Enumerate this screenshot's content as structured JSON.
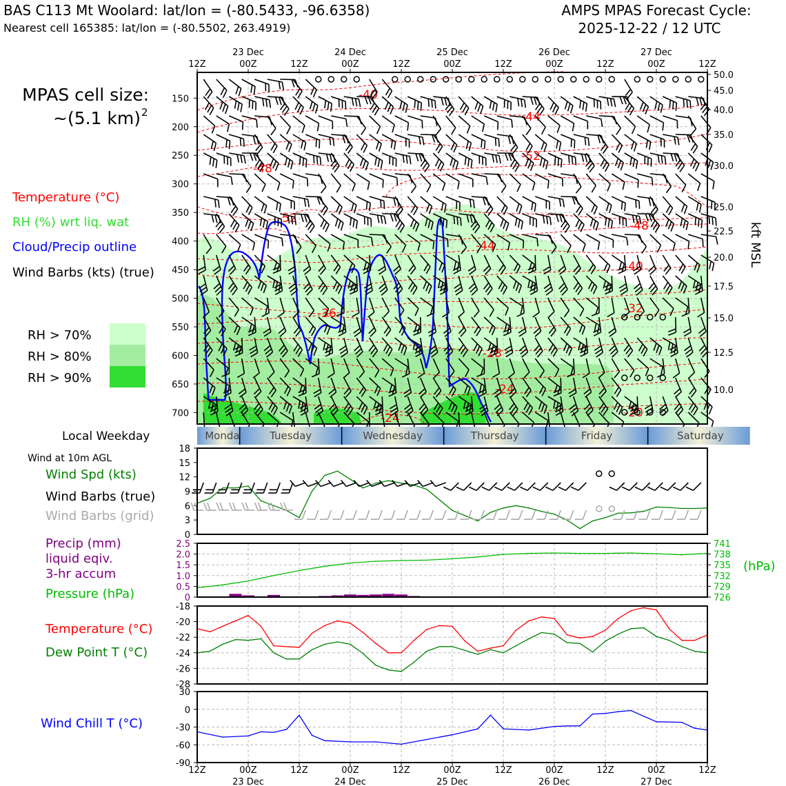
{
  "header": {
    "station_title": "BAS C113 Mt Woolard: lat/lon = (-80.5433, -96.6358)",
    "nearest_cell": "Nearest cell 165385: lat/lon = (-80.5502, 263.4919)",
    "forecast_title": "AMPS MPAS Forecast Cycle:",
    "forecast_cycle": "2025-12-22 / 12 UTC"
  },
  "time_axis": {
    "ticks": [
      "12Z",
      "00Z",
      "12Z",
      "00Z",
      "12Z",
      "00Z",
      "12Z",
      "00Z",
      "12Z",
      "00Z",
      "12Z"
    ],
    "dates": [
      "23 Dec",
      "24 Dec",
      "25 Dec",
      "26 Dec",
      "27 Dec"
    ],
    "xlim": [
      0,
      120
    ]
  },
  "legend": {
    "cell_size_label": "MPAS cell size:",
    "cell_size_value": "~(5.1 km)",
    "cell_size_exp": "2",
    "temperature": "Temperature (°C)",
    "rh": "RH (%) wrt liq. wat",
    "cloud": "Cloud/Precip outline",
    "wind_barbs": "Wind Barbs (kts) (true)",
    "rh70": "RH > 70%",
    "rh80": "RH > 80%",
    "rh90": "RH > 90%",
    "local_weekday": "Local Weekday",
    "wind_10m": "Wind at 10m AGL",
    "wind_spd": "Wind Spd (kts)",
    "wind_barbs_true": "Wind Barbs (true)",
    "wind_barbs_grid": "Wind Barbs (grid)",
    "precip_1": "Precip (mm)",
    "precip_2": "liquid eqiv.",
    "precip_3": "3-hr accum",
    "pressure": "Pressure (hPa)",
    "temp2": "Temperature (°C)",
    "dewpoint": "Dew Point T (°C)",
    "windchill": "Wind Chill T (°C)",
    "hpa_label": "(hPa)",
    "kft_label": "kft MSL"
  },
  "colors": {
    "temp": "#ff0000",
    "rh": "#33dd33",
    "cloud": "#0000ff",
    "dew": "#008000",
    "precip": "#800080",
    "pressure": "#00bb00",
    "rh70": "#ccffcc",
    "rh80": "#a2ed9f",
    "rh90": "#33dd33"
  },
  "weekdays": [
    "Monday",
    "Tuesday",
    "Wednesday",
    "Thursday",
    "Friday",
    "Saturday"
  ],
  "chart_data": [
    {
      "type": "contour",
      "name": "upper-air cross section",
      "ylabel_left": "Pressure (hPa)",
      "ylabel_right": "kft MSL",
      "y_left_ticks": [
        "150",
        "200",
        "250",
        "300",
        "350",
        "400",
        "450",
        "500",
        "550",
        "600",
        "650",
        "700"
      ],
      "y_right_ticks": [
        "50.0",
        "45.0",
        "40.0",
        "35.0",
        "30.0",
        "25.0",
        "22.5",
        "20.0",
        "17.5",
        "15.0",
        "12.5",
        "10.0"
      ],
      "ylim_hpa": [
        105,
        720
      ],
      "temperature_contour_labels": [
        "-40",
        "-44",
        "-52",
        "-48",
        "-52",
        "-48",
        "-44",
        "-40",
        "-36",
        "-32",
        "-28",
        "-24",
        "-24",
        "-20"
      ]
    },
    {
      "type": "line",
      "name": "10 m wind speed",
      "ylabel": "Wind Spd (kts)",
      "y_ticks": [
        "0",
        "3",
        "6",
        "9",
        "12",
        "15",
        "18"
      ],
      "ylim": [
        0,
        18
      ],
      "x": [
        0,
        3,
        6,
        9,
        12,
        15,
        18,
        21,
        24,
        27,
        30,
        33,
        36,
        39,
        42,
        45,
        48,
        51,
        54,
        57,
        60,
        63,
        66,
        69,
        72,
        75,
        78,
        81,
        84,
        87,
        90,
        93,
        96,
        99,
        102,
        105,
        108,
        111,
        114,
        117,
        120
      ],
      "values": [
        6.5,
        7.5,
        9.7,
        9.7,
        10.1,
        7.0,
        6.0,
        5.0,
        3.5,
        9.0,
        12.3,
        13.2,
        11.5,
        9.7,
        10.7,
        11.2,
        10.7,
        10.3,
        9.4,
        7.2,
        5.0,
        3.9,
        2.8,
        4.6,
        5.5,
        6.0,
        5.5,
        4.8,
        4.2,
        3.0,
        1.2,
        2.8,
        3.5,
        4.4,
        4.5,
        4.8,
        5.7,
        5.6,
        5.4,
        5.4,
        5.5
      ]
    },
    {
      "type": "bar+line",
      "name": "precipitation and pressure",
      "precip_ylabel": "Precip (mm)",
      "precip_ticks": [
        "0",
        "0.5",
        "1.0",
        "1.5",
        "2.0",
        "2.5"
      ],
      "precip_ylim": [
        0,
        2.5
      ],
      "precip_x": [
        9,
        12,
        18,
        30,
        33,
        36,
        39,
        42,
        45,
        48,
        51
      ],
      "precip_values": [
        0.15,
        0.08,
        0.1,
        0.05,
        0.08,
        0.12,
        0.1,
        0.12,
        0.15,
        0.12,
        0.05
      ],
      "pressure_ticks": [
        "741",
        "738",
        "735",
        "732",
        "729",
        "726"
      ],
      "pressure_ylim": [
        726,
        741
      ],
      "pressure_x": [
        0,
        6,
        12,
        18,
        24,
        30,
        36,
        42,
        48,
        54,
        60,
        66,
        72,
        78,
        84,
        90,
        96,
        102,
        108,
        114,
        120
      ],
      "pressure_values": [
        728.6,
        729.4,
        730.5,
        732.0,
        733.4,
        734.6,
        735.5,
        736.0,
        736.2,
        736.3,
        736.7,
        737.2,
        737.9,
        738.2,
        738.3,
        738.2,
        738.2,
        738.3,
        738.1,
        737.8,
        738.2
      ]
    },
    {
      "type": "line",
      "name": "temperature and dew point",
      "y_ticks": [
        "-18",
        "-20",
        "-22",
        "-24",
        "-26",
        "-28"
      ],
      "ylim": [
        -28,
        -18
      ],
      "x": [
        0,
        3,
        6,
        9,
        12,
        15,
        18,
        21,
        24,
        27,
        30,
        33,
        36,
        39,
        42,
        45,
        48,
        51,
        54,
        57,
        60,
        63,
        66,
        69,
        72,
        75,
        78,
        81,
        84,
        87,
        90,
        93,
        96,
        99,
        102,
        105,
        108,
        111,
        114,
        117,
        120
      ],
      "temperature": [
        -20.9,
        -21.3,
        -20.6,
        -19.9,
        -19.2,
        -20.6,
        -23.1,
        -23.2,
        -23.3,
        -21.5,
        -20.5,
        -19.9,
        -20.2,
        -21.4,
        -22.8,
        -24.0,
        -24.0,
        -22.4,
        -21.0,
        -20.5,
        -20.6,
        -22.5,
        -23.8,
        -23.4,
        -23.1,
        -21.1,
        -19.9,
        -19.4,
        -19.6,
        -21.7,
        -22.1,
        -21.9,
        -21.1,
        -19.6,
        -18.6,
        -18.2,
        -18.5,
        -20.9,
        -22.4,
        -22.4,
        -21.7
      ],
      "dewpoint": [
        -24.0,
        -23.8,
        -22.9,
        -22.3,
        -22.4,
        -22.2,
        -24.0,
        -24.8,
        -24.8,
        -23.6,
        -22.9,
        -22.6,
        -22.9,
        -24.1,
        -25.6,
        -26.2,
        -26.4,
        -25.2,
        -23.8,
        -23.2,
        -23.2,
        -23.7,
        -24.2,
        -23.6,
        -24.0,
        -23.1,
        -22.2,
        -21.4,
        -21.6,
        -22.7,
        -22.8,
        -23.9,
        -22.5,
        -21.6,
        -20.9,
        -20.8,
        -21.9,
        -22.4,
        -23.2,
        -23.8,
        -24.0
      ]
    },
    {
      "type": "line",
      "name": "wind chill",
      "ylabel": "Wind Chill T (°C)",
      "y_ticks": [
        "30",
        "0",
        "-30",
        "-60",
        "-90"
      ],
      "ylim": [
        -90,
        30
      ],
      "x": [
        0,
        6,
        12,
        15,
        18,
        21,
        24,
        27,
        30,
        36,
        42,
        48,
        54,
        60,
        66,
        69,
        72,
        78,
        84,
        87,
        90,
        93,
        96,
        99,
        102,
        108,
        114,
        117,
        120
      ],
      "values": [
        -38,
        -47,
        -45,
        -38,
        -39,
        -34,
        -10,
        -44,
        -53,
        -55,
        -55,
        -59,
        -51,
        -43,
        -33,
        -10,
        -33,
        -35,
        -29,
        -28,
        -28,
        -8,
        -7,
        -4,
        -2,
        -21,
        -22,
        -32,
        -35
      ]
    }
  ]
}
